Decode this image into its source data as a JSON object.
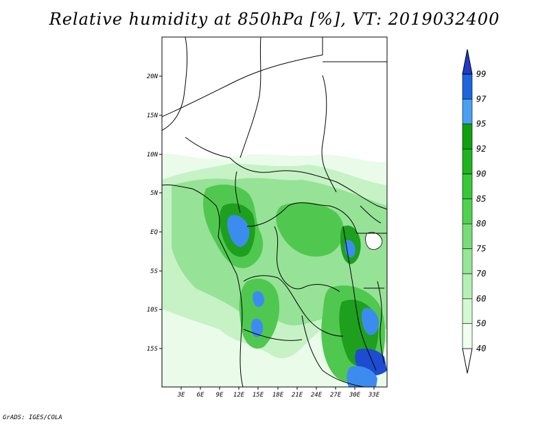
{
  "title": "Relative humidity at 850hPa [%], VT: 2019032400",
  "credit": "GrADS: IGES/COLA",
  "axes": {
    "x_ticks": [
      "3E",
      "6E",
      "9E",
      "12E",
      "15E",
      "18E",
      "21E",
      "24E",
      "27E",
      "30E",
      "33E"
    ],
    "y_ticks": [
      "20N",
      "15N",
      "10N",
      "5N",
      "EQ",
      "5S",
      "10S",
      "15S"
    ]
  },
  "colorbar": {
    "levels": [
      "40",
      "50",
      "60",
      "70",
      "75",
      "80",
      "85",
      "90",
      "92",
      "95",
      "97",
      "99"
    ],
    "colors": [
      "#f0fff0",
      "#d2fad2",
      "#b4f0b4",
      "#96e696",
      "#78dc78",
      "#50d250",
      "#37c837",
      "#1eb41e",
      "#0fa00f",
      "#4aa0f0",
      "#1e64dc",
      "#1e3cc8"
    ]
  },
  "colors": {
    "land": "#ffffff",
    "border": "#000000",
    "low": "#e6fae6",
    "mid": "#a0e6a0",
    "high": "#50c850",
    "wet": "#2a9a2a",
    "sat": "#3c8cf0"
  }
}
